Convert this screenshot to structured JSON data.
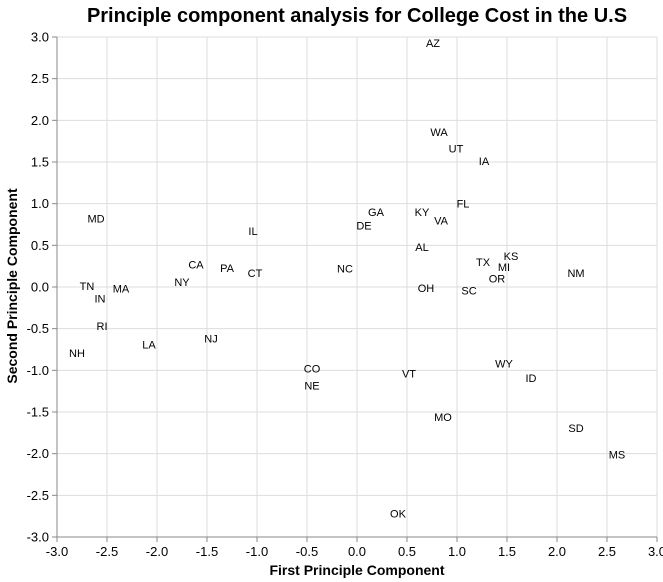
{
  "chart_data": {
    "type": "scatter",
    "title": "Principle component analysis for College Cost in the U.S",
    "xlabel": "First Principle Component",
    "ylabel": "Second Principle Component",
    "xlim": [
      -3.0,
      3.0
    ],
    "ylim": [
      -3.0,
      3.0
    ],
    "x_ticks": [
      "-3.0",
      "-2.5",
      "-2.0",
      "-1.5",
      "-1.0",
      "-0.5",
      "0.0",
      "0.5",
      "1.0",
      "1.5",
      "2.0",
      "2.5",
      "3.0"
    ],
    "y_ticks": [
      "3.0",
      "2.5",
      "2.0",
      "1.5",
      "1.0",
      "0.5",
      "0.0",
      "-0.5",
      "-1.0",
      "-1.5",
      "-2.0",
      "-2.5",
      "-3.0"
    ],
    "grid": true,
    "points": [
      {
        "label": "AZ",
        "x": 0.76,
        "y": 2.93
      },
      {
        "label": "WA",
        "x": 0.82,
        "y": 1.86
      },
      {
        "label": "UT",
        "x": 0.99,
        "y": 1.66
      },
      {
        "label": "IA",
        "x": 1.27,
        "y": 1.51
      },
      {
        "label": "FL",
        "x": 1.06,
        "y": 1.0
      },
      {
        "label": "KY",
        "x": 0.65,
        "y": 0.9
      },
      {
        "label": "VA",
        "x": 0.84,
        "y": 0.8
      },
      {
        "label": "GA",
        "x": 0.19,
        "y": 0.9
      },
      {
        "label": "DE",
        "x": 0.07,
        "y": 0.74
      },
      {
        "label": "AL",
        "x": 0.65,
        "y": 0.48
      },
      {
        "label": "KS",
        "x": 1.54,
        "y": 0.37
      },
      {
        "label": "TX",
        "x": 1.26,
        "y": 0.3
      },
      {
        "label": "MI",
        "x": 1.47,
        "y": 0.24
      },
      {
        "label": "NM",
        "x": 2.19,
        "y": 0.17
      },
      {
        "label": "OR",
        "x": 1.4,
        "y": 0.1
      },
      {
        "label": "OH",
        "x": 0.69,
        "y": -0.01
      },
      {
        "label": "SC",
        "x": 1.12,
        "y": -0.04
      },
      {
        "label": "NC",
        "x": -0.12,
        "y": 0.22
      },
      {
        "label": "IL",
        "x": -1.04,
        "y": 0.67
      },
      {
        "label": "MD",
        "x": -2.61,
        "y": 0.82
      },
      {
        "label": "CA",
        "x": -1.61,
        "y": 0.27
      },
      {
        "label": "PA",
        "x": -1.3,
        "y": 0.23
      },
      {
        "label": "CT",
        "x": -1.02,
        "y": 0.17
      },
      {
        "label": "NY",
        "x": -1.75,
        "y": 0.06
      },
      {
        "label": "TN",
        "x": -2.7,
        "y": 0.01
      },
      {
        "label": "MA",
        "x": -2.36,
        "y": -0.02
      },
      {
        "label": "IN",
        "x": -2.57,
        "y": -0.14
      },
      {
        "label": "RI",
        "x": -2.55,
        "y": -0.47
      },
      {
        "label": "NJ",
        "x": -1.46,
        "y": -0.62
      },
      {
        "label": "LA",
        "x": -2.08,
        "y": -0.69
      },
      {
        "label": "NH",
        "x": -2.8,
        "y": -0.79
      },
      {
        "label": "CO",
        "x": -0.45,
        "y": -0.98
      },
      {
        "label": "NE",
        "x": -0.45,
        "y": -1.18
      },
      {
        "label": "VT",
        "x": 0.52,
        "y": -1.04
      },
      {
        "label": "WY",
        "x": 1.47,
        "y": -0.92
      },
      {
        "label": "ID",
        "x": 1.74,
        "y": -1.09
      },
      {
        "label": "MO",
        "x": 0.86,
        "y": -1.56
      },
      {
        "label": "SD",
        "x": 2.19,
        "y": -1.69
      },
      {
        "label": "MS",
        "x": 2.6,
        "y": -2.01
      },
      {
        "label": "OK",
        "x": 0.41,
        "y": -2.72
      }
    ]
  }
}
